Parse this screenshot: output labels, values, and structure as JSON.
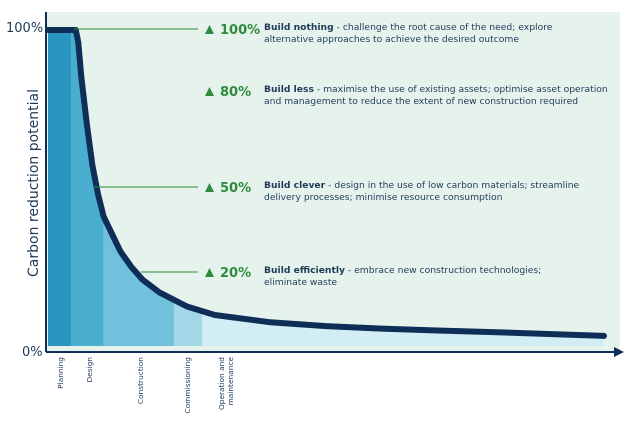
{
  "chart_data": {
    "type": "area",
    "title": "",
    "ylabel": "Carbon reduction potential",
    "xlabel": "",
    "y_tick_labels": [
      "100%",
      "0%"
    ],
    "ylim": [
      0,
      100
    ],
    "phases": [
      "Planning",
      "Design",
      "Construction",
      "Commissioning",
      "Operation and maintenance"
    ],
    "phase_colors": [
      "#2a95bf",
      "#4aaecf",
      "#72c1dc",
      "#a3d7e8",
      "#d3edf5"
    ],
    "background_color": "#e6f3ec",
    "curve_color": "#0f2e57",
    "marker_color": "#2e8b3e",
    "curve": {
      "x": [
        0,
        0.05,
        0.0545,
        0.06,
        0.07,
        0.08,
        0.09,
        0.1,
        0.13,
        0.15,
        0.17,
        0.2,
        0.25,
        0.3,
        0.4,
        0.5,
        0.6,
        0.7,
        0.8,
        0.9,
        1.0
      ],
      "y": [
        100,
        100,
        96,
        85,
        70,
        57,
        48,
        41,
        30,
        25,
        21,
        17,
        12.5,
        9.8,
        7.5,
        6.3,
        5.5,
        4.9,
        4.4,
        3.8,
        3.2
      ]
    },
    "levels": [
      {
        "value": "100%",
        "title": "Build nothing",
        "text": " - challenge the root cause of the need; explore",
        "text2": "alternative approaches to achieve the desired outcome"
      },
      {
        "value": "80%",
        "title": "Build less",
        "text": " - maximise the use of existing assets; optimise asset operation",
        "text2": "and management to reduce the extent of new construction required"
      },
      {
        "value": "50%",
        "title": "Build clever",
        "text": " - design in the use of low carbon materials; streamline",
        "text2": "delivery processes; minimise resource consumption"
      },
      {
        "value": "20%",
        "title": "Build efficiently",
        "text": " - embrace new construction technologies;",
        "text2": "eliminate waste"
      }
    ]
  }
}
